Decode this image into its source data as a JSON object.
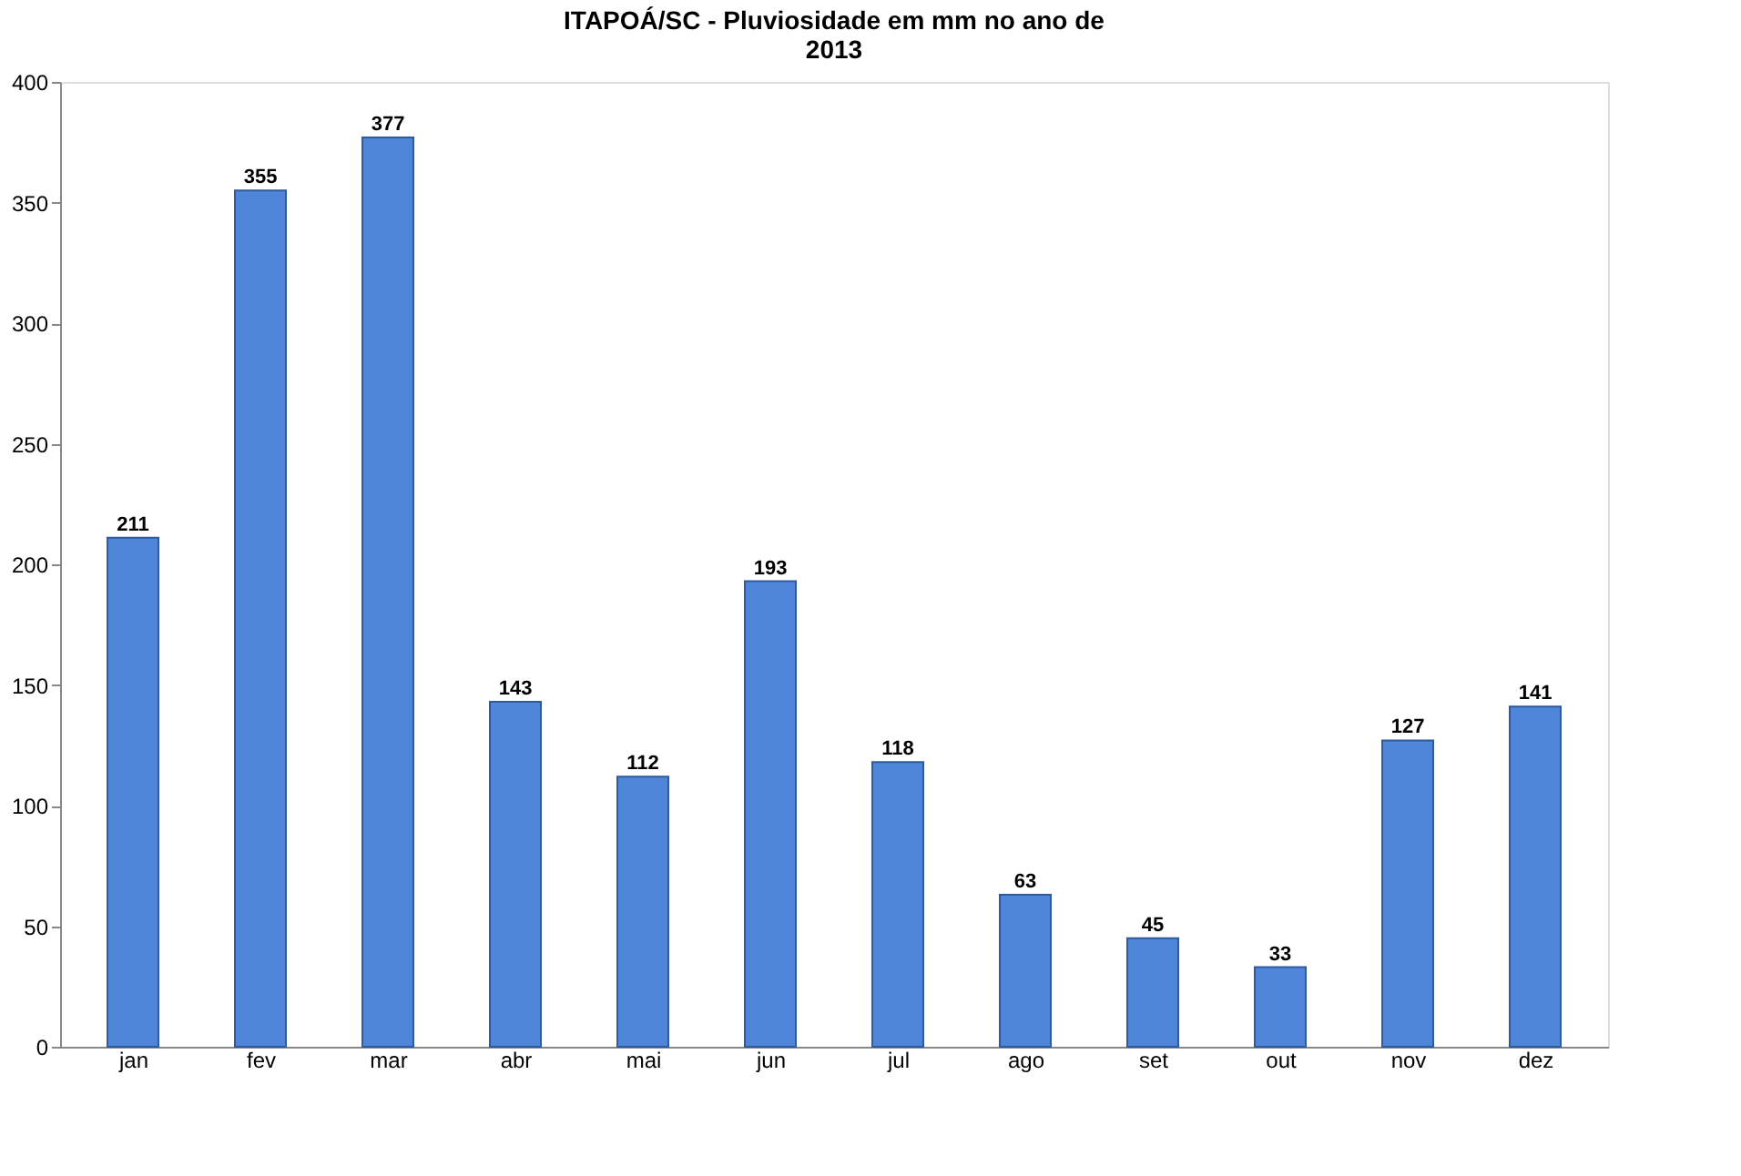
{
  "chart_data": {
    "type": "bar",
    "title": "ITAPOÁ/SC - Pluviosidade em mm no ano de 2013",
    "categories": [
      "jan",
      "fev",
      "mar",
      "abr",
      "mai",
      "jun",
      "jul",
      "ago",
      "set",
      "out",
      "nov",
      "dez"
    ],
    "values": [
      211,
      355,
      377,
      143,
      112,
      193,
      118,
      63,
      45,
      33,
      127,
      141
    ],
    "color": "#4f86d9",
    "ylim": [
      0,
      400
    ],
    "yticks": [
      0,
      50,
      100,
      150,
      200,
      250,
      300,
      350,
      400
    ],
    "grid": false,
    "data_labels": true
  }
}
